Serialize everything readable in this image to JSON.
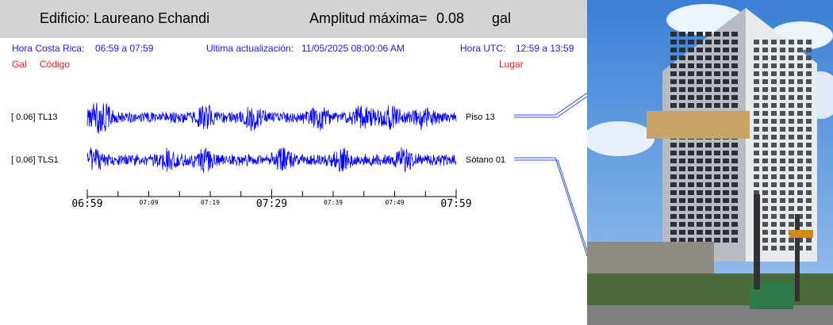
{
  "header": {
    "building_label": "Edificio: Laureano Echandi",
    "amplitude_label": "Amplitud máxima=",
    "amplitude_value": "0.08",
    "amplitude_unit": "gal"
  },
  "info": {
    "local_time_label": "Hora Costa Rica:",
    "local_time_range": "06:59 a 07:59",
    "last_update_label": "Ultima actualización:",
    "last_update_value": "11/05/2025 08:00:06 AM",
    "utc_label": "Hora UTC:",
    "utc_range": "12:59 a 13:59"
  },
  "columns": {
    "gal": "Gal",
    "code": "Código",
    "place": "Lugar"
  },
  "chart_data": {
    "type": "line",
    "x_unit": "local time",
    "xlim": [
      "06:59",
      "07:59"
    ],
    "x_major_ticks": [
      "06:59",
      "07:29",
      "07:59"
    ],
    "x_minor_tick_labels": [
      "07:09",
      "07:19",
      "07:39",
      "07:49"
    ],
    "series": [
      {
        "bracket_value": "[   0.06] TL13",
        "code": "TL13",
        "max_gal": 0.06,
        "location": "Piso 13",
        "color": "#0000ff",
        "bursts": [
          0.02,
          0.045,
          0.32,
          0.45,
          0.63,
          0.75,
          0.82,
          0.91
        ]
      },
      {
        "bracket_value": "[   0.06] TLS1",
        "code": "TLS1",
        "max_gal": 0.06,
        "location": "Sótano 01",
        "color": "#0000ff",
        "bursts": [
          0.02,
          0.22,
          0.32,
          0.53,
          0.69,
          0.86
        ]
      }
    ]
  },
  "photo": {
    "alt": "building-photo"
  }
}
